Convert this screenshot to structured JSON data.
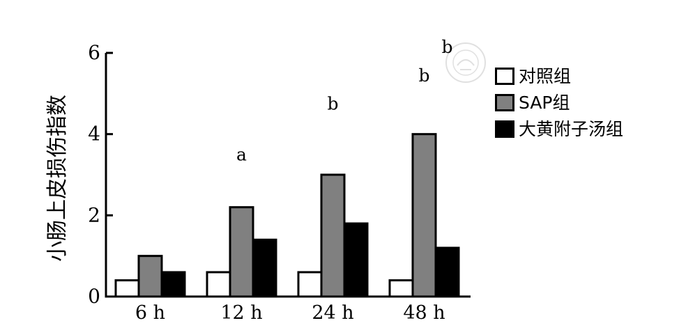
{
  "chart_data": {
    "type": "bar",
    "title": "",
    "xlabel": "",
    "ylabel": "小肠上皮损伤指数",
    "ylim": [
      0,
      6
    ],
    "yticks": [
      "0",
      "2",
      "4",
      "6"
    ],
    "categories": [
      "6 h",
      "12 h",
      "24 h",
      "48 h"
    ],
    "series": [
      {
        "name": "对照组",
        "color": "#ffffff",
        "values": [
          0.4,
          0.6,
          0.6,
          0.4
        ]
      },
      {
        "name": "SAP组",
        "color": "#808080",
        "values": [
          1.0,
          2.2,
          3.0,
          4.0
        ]
      },
      {
        "name": "大黄附子汤组",
        "color": "#000000",
        "values": [
          0.6,
          1.4,
          1.8,
          1.2
        ]
      }
    ],
    "annotations": [
      {
        "category": "12 h",
        "label": "a",
        "value": 3.35
      },
      {
        "category": "24 h",
        "label": "b",
        "value": 4.6
      },
      {
        "category": "48 h",
        "label": "b",
        "value": 5.3
      },
      {
        "category": "48 h",
        "label": "b",
        "value": 6.0
      }
    ],
    "grid": false,
    "legend": "right"
  }
}
